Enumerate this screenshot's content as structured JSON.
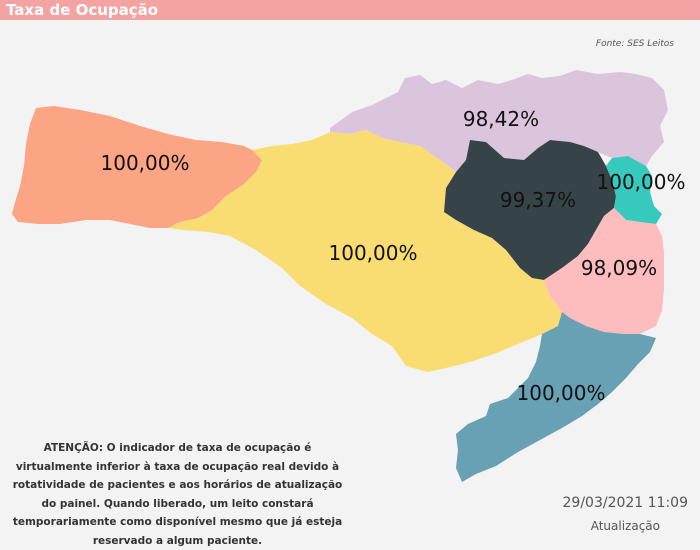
{
  "header": {
    "title": "Taxa de Ocupação"
  },
  "source": "Fonte: SES Leitos",
  "regions": [
    {
      "id": "west",
      "value": "100,00%",
      "color": "#fba584"
    },
    {
      "id": "center",
      "value": "100,00%",
      "color": "#f9dd72"
    },
    {
      "id": "north",
      "value": "98,42%",
      "color": "#dbc5dd"
    },
    {
      "id": "northeast",
      "value": "99,37%",
      "color": "#364449"
    },
    {
      "id": "coast-north",
      "value": "100,00%",
      "color": "#37c9bd"
    },
    {
      "id": "grande-florianopolis",
      "value": "98,09%",
      "color": "#fdbcbd"
    },
    {
      "id": "south",
      "value": "100,00%",
      "color": "#68a0b4"
    }
  ],
  "warning": "ATENÇÃO: O indicador de taxa de ocupação é virtualmente inferior à taxa de ocupação real devido à rotatividade de pacientes e aos horários de atualização do painel.  Quando liberado, um leito constará temporariamente como disponível mesmo que já esteja reservado a algum paciente.",
  "updated": {
    "timestamp": "29/03/2021 11:09",
    "label": "Atualização"
  }
}
